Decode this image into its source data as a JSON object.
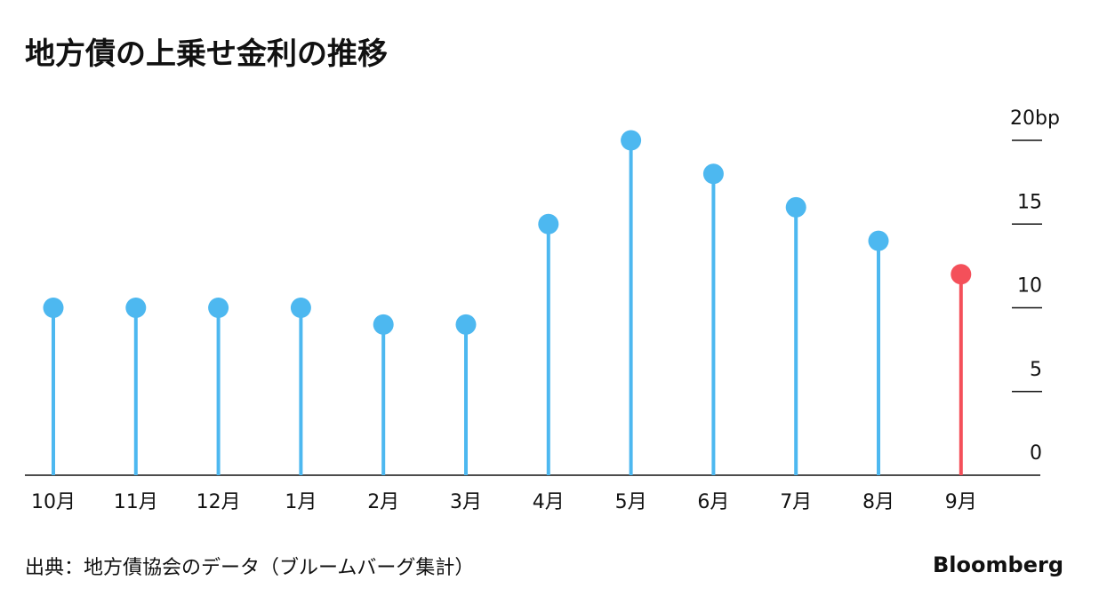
{
  "chart_data": {
    "type": "lollipop",
    "title": "地方債の上乗せ金利の推移",
    "categories": [
      "10月",
      "11月",
      "12月",
      "1月",
      "2月",
      "3月",
      "4月",
      "5月",
      "6月",
      "7月",
      "8月",
      "9月"
    ],
    "values": [
      10,
      10,
      10,
      10,
      9,
      9,
      15,
      20,
      18,
      16,
      14,
      12
    ],
    "colors": [
      "#4db8f0",
      "#4db8f0",
      "#4db8f0",
      "#4db8f0",
      "#4db8f0",
      "#4db8f0",
      "#4db8f0",
      "#4db8f0",
      "#4db8f0",
      "#4db8f0",
      "#4db8f0",
      "#f4505a"
    ],
    "ylim": [
      0,
      20
    ],
    "yticks": [
      0,
      5,
      10,
      15,
      {
        "value": 20,
        "label": "20bp"
      }
    ],
    "axis_side": "right",
    "source": "出典：地方債協会のデータ（ブルームバーグ集計）",
    "brand": "Bloomberg"
  }
}
